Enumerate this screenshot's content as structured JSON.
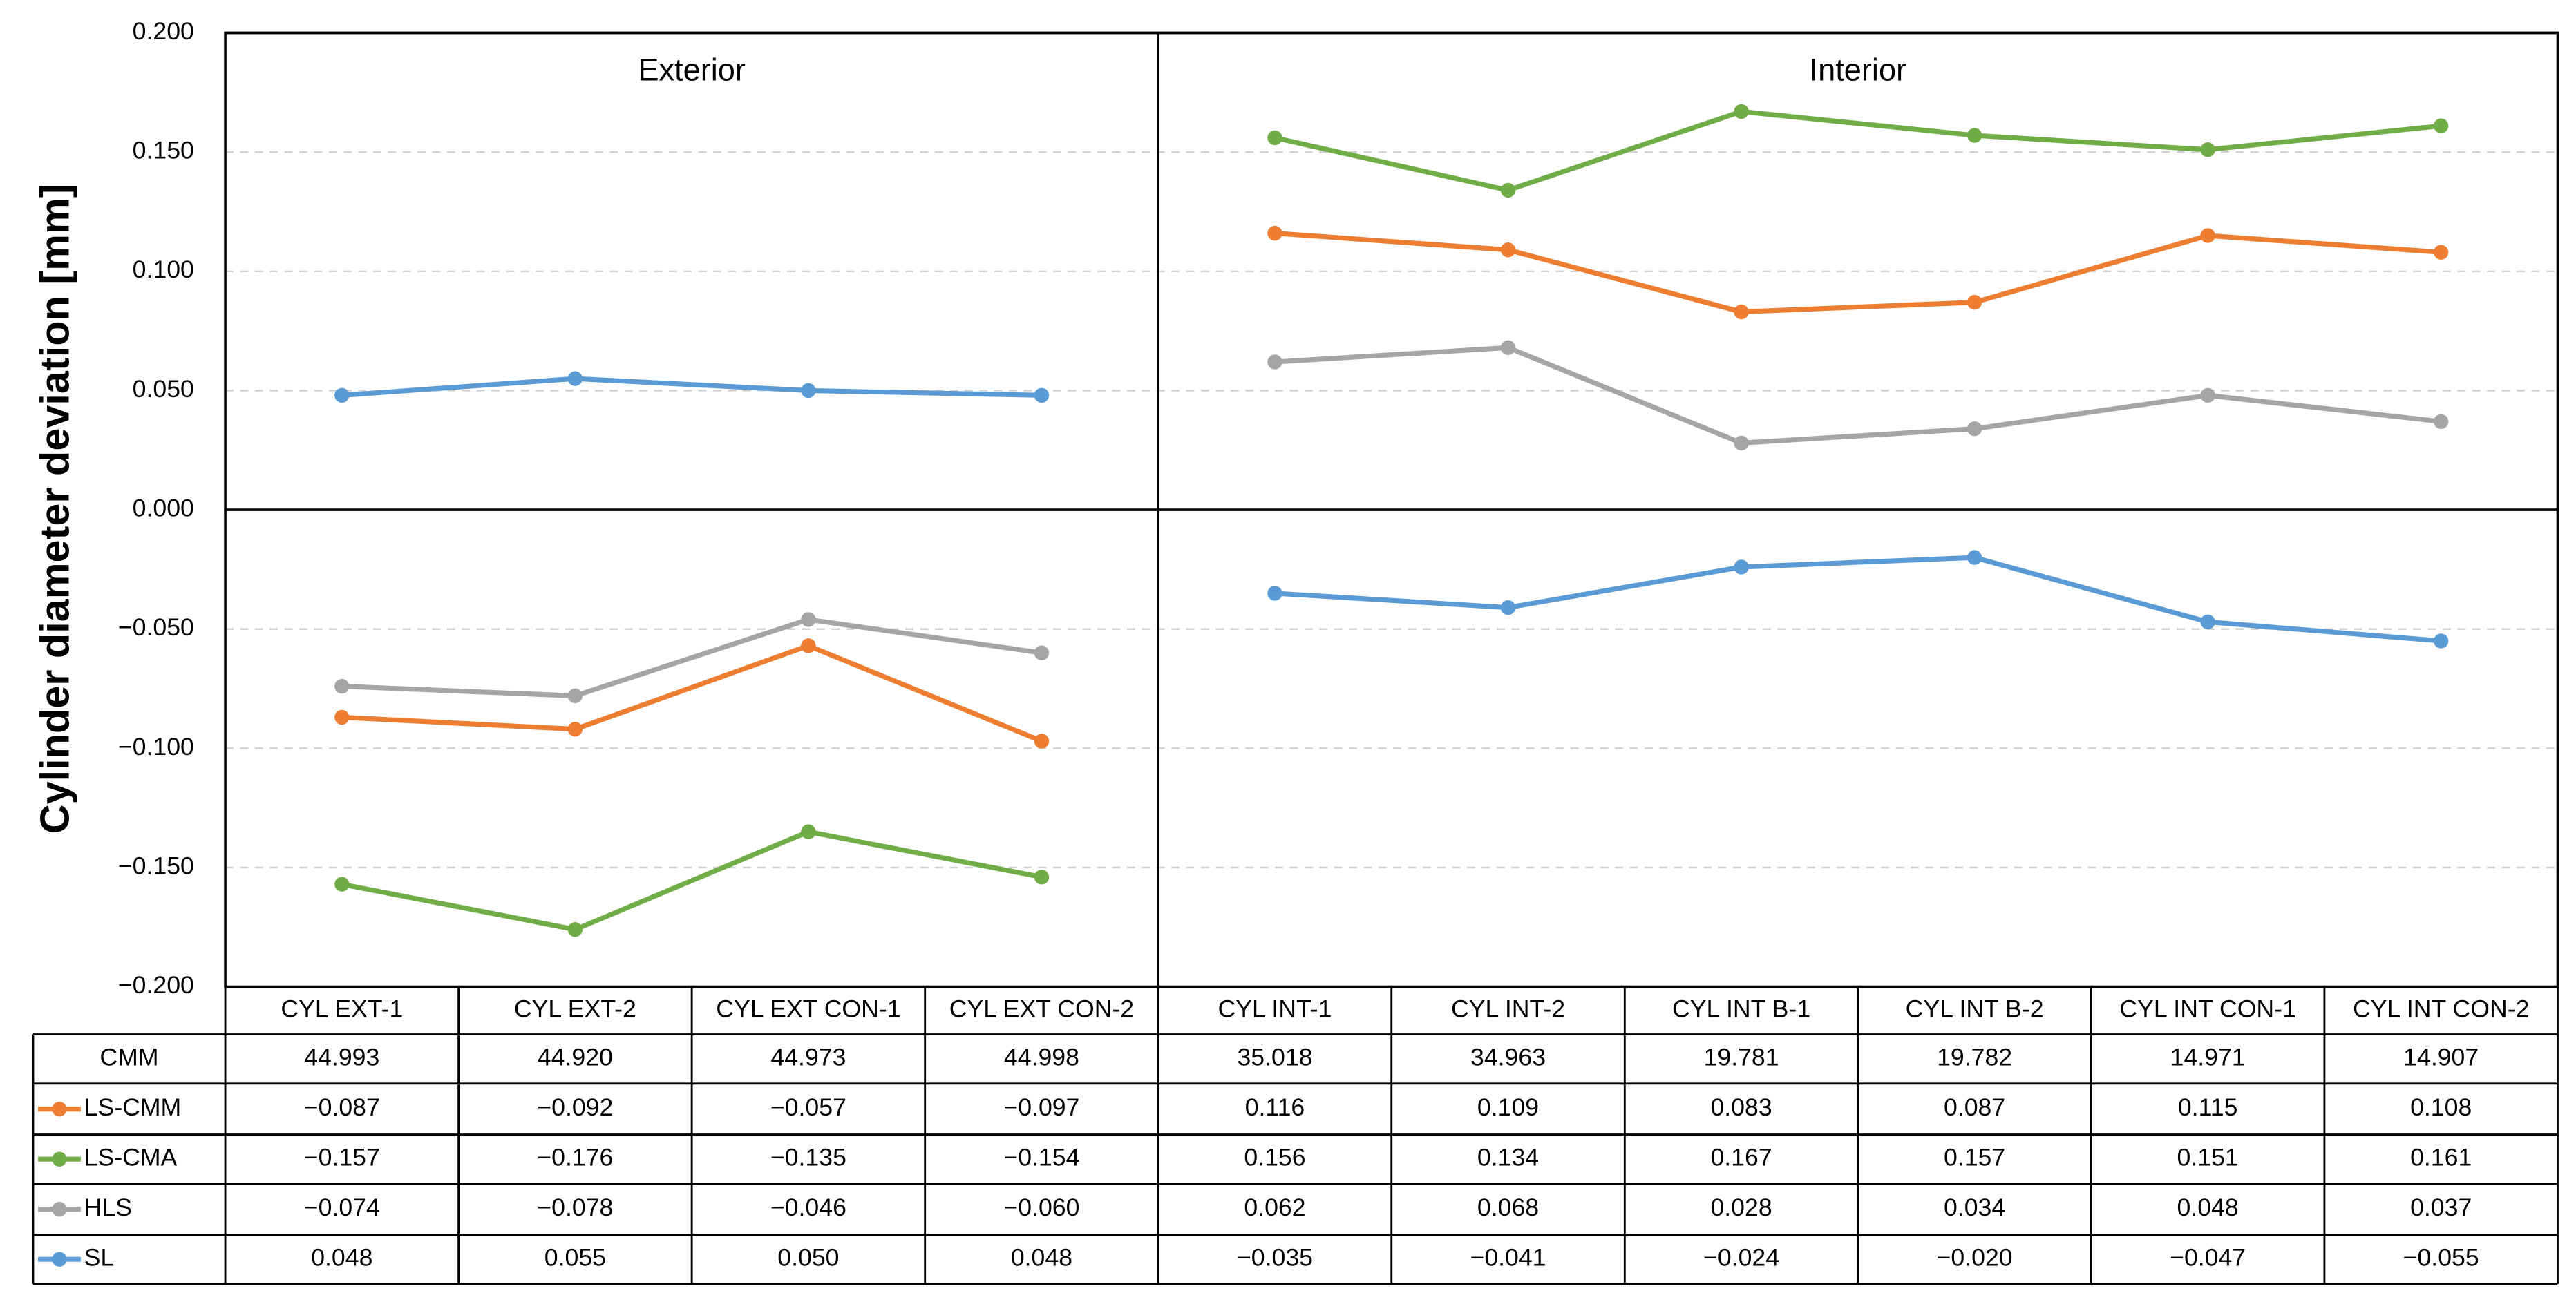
{
  "chart_data": {
    "type": "line",
    "ylabel": "Cylinder diameter deviation [mm]",
    "ylim": [
      -0.2,
      0.2
    ],
    "yticks": [
      {
        "value": 0.2,
        "label": "0.200"
      },
      {
        "value": 0.15,
        "label": "0.150"
      },
      {
        "value": 0.1,
        "label": "0.100"
      },
      {
        "value": 0.05,
        "label": "0.050"
      },
      {
        "value": 0,
        "label": "0.000"
      },
      {
        "value": -0.05,
        "label": "−0.050"
      },
      {
        "value": -0.1,
        "label": "−0.100"
      },
      {
        "value": -0.15,
        "label": "−0.150"
      },
      {
        "value": -0.2,
        "label": "−0.200"
      }
    ],
    "grid": true,
    "panels": [
      {
        "title": "Exterior",
        "categories": [
          "CYL EXT-1",
          "CYL EXT-2",
          "CYL EXT CON-1",
          "CYL EXT CON-2"
        ]
      },
      {
        "title": "Interior",
        "categories": [
          "CYL INT-1",
          "CYL INT-2",
          "CYL INT B-1",
          "CYL INT B-2",
          "CYL INT CON-1",
          "CYL INT CON-2"
        ]
      }
    ],
    "table_row": {
      "name": "CMM",
      "cells": [
        "44.993",
        "44.920",
        "44.973",
        "44.998",
        "35.018",
        "34.963",
        "19.781",
        "19.782",
        "14.971",
        "14.907"
      ]
    },
    "series": [
      {
        "name": "LS-CMM",
        "color": "#ED7D31",
        "values": [
          -0.087,
          -0.092,
          -0.057,
          -0.097,
          0.116,
          0.109,
          0.083,
          0.087,
          0.115,
          0.108
        ],
        "value_labels": [
          "−0.087",
          "−0.092",
          "−0.057",
          "−0.097",
          "0.116",
          "0.109",
          "0.083",
          "0.087",
          "0.115",
          "0.108"
        ]
      },
      {
        "name": "LS-CMA",
        "color": "#70AD47",
        "values": [
          -0.157,
          -0.176,
          -0.135,
          -0.154,
          0.156,
          0.134,
          0.167,
          0.157,
          0.151,
          0.161
        ],
        "value_labels": [
          "−0.157",
          "−0.176",
          "−0.135",
          "−0.154",
          "0.156",
          "0.134",
          "0.167",
          "0.157",
          "0.151",
          "0.161"
        ]
      },
      {
        "name": "HLS",
        "color": "#A5A5A5",
        "values": [
          -0.074,
          -0.078,
          -0.046,
          -0.06,
          0.062,
          0.068,
          0.028,
          0.034,
          0.048,
          0.037
        ],
        "value_labels": [
          "−0.074",
          "−0.078",
          "−0.046",
          "−0.060",
          "0.062",
          "0.068",
          "0.028",
          "0.034",
          "0.048",
          "0.037"
        ]
      },
      {
        "name": "SL",
        "color": "#5B9BD5",
        "values": [
          0.048,
          0.055,
          0.05,
          0.048,
          -0.035,
          -0.041,
          -0.024,
          -0.02,
          -0.047,
          -0.055
        ],
        "value_labels": [
          "0.048",
          "0.055",
          "0.050",
          "0.048",
          "−0.035",
          "−0.041",
          "−0.024",
          "−0.020",
          "−0.047",
          "−0.055"
        ]
      }
    ]
  }
}
